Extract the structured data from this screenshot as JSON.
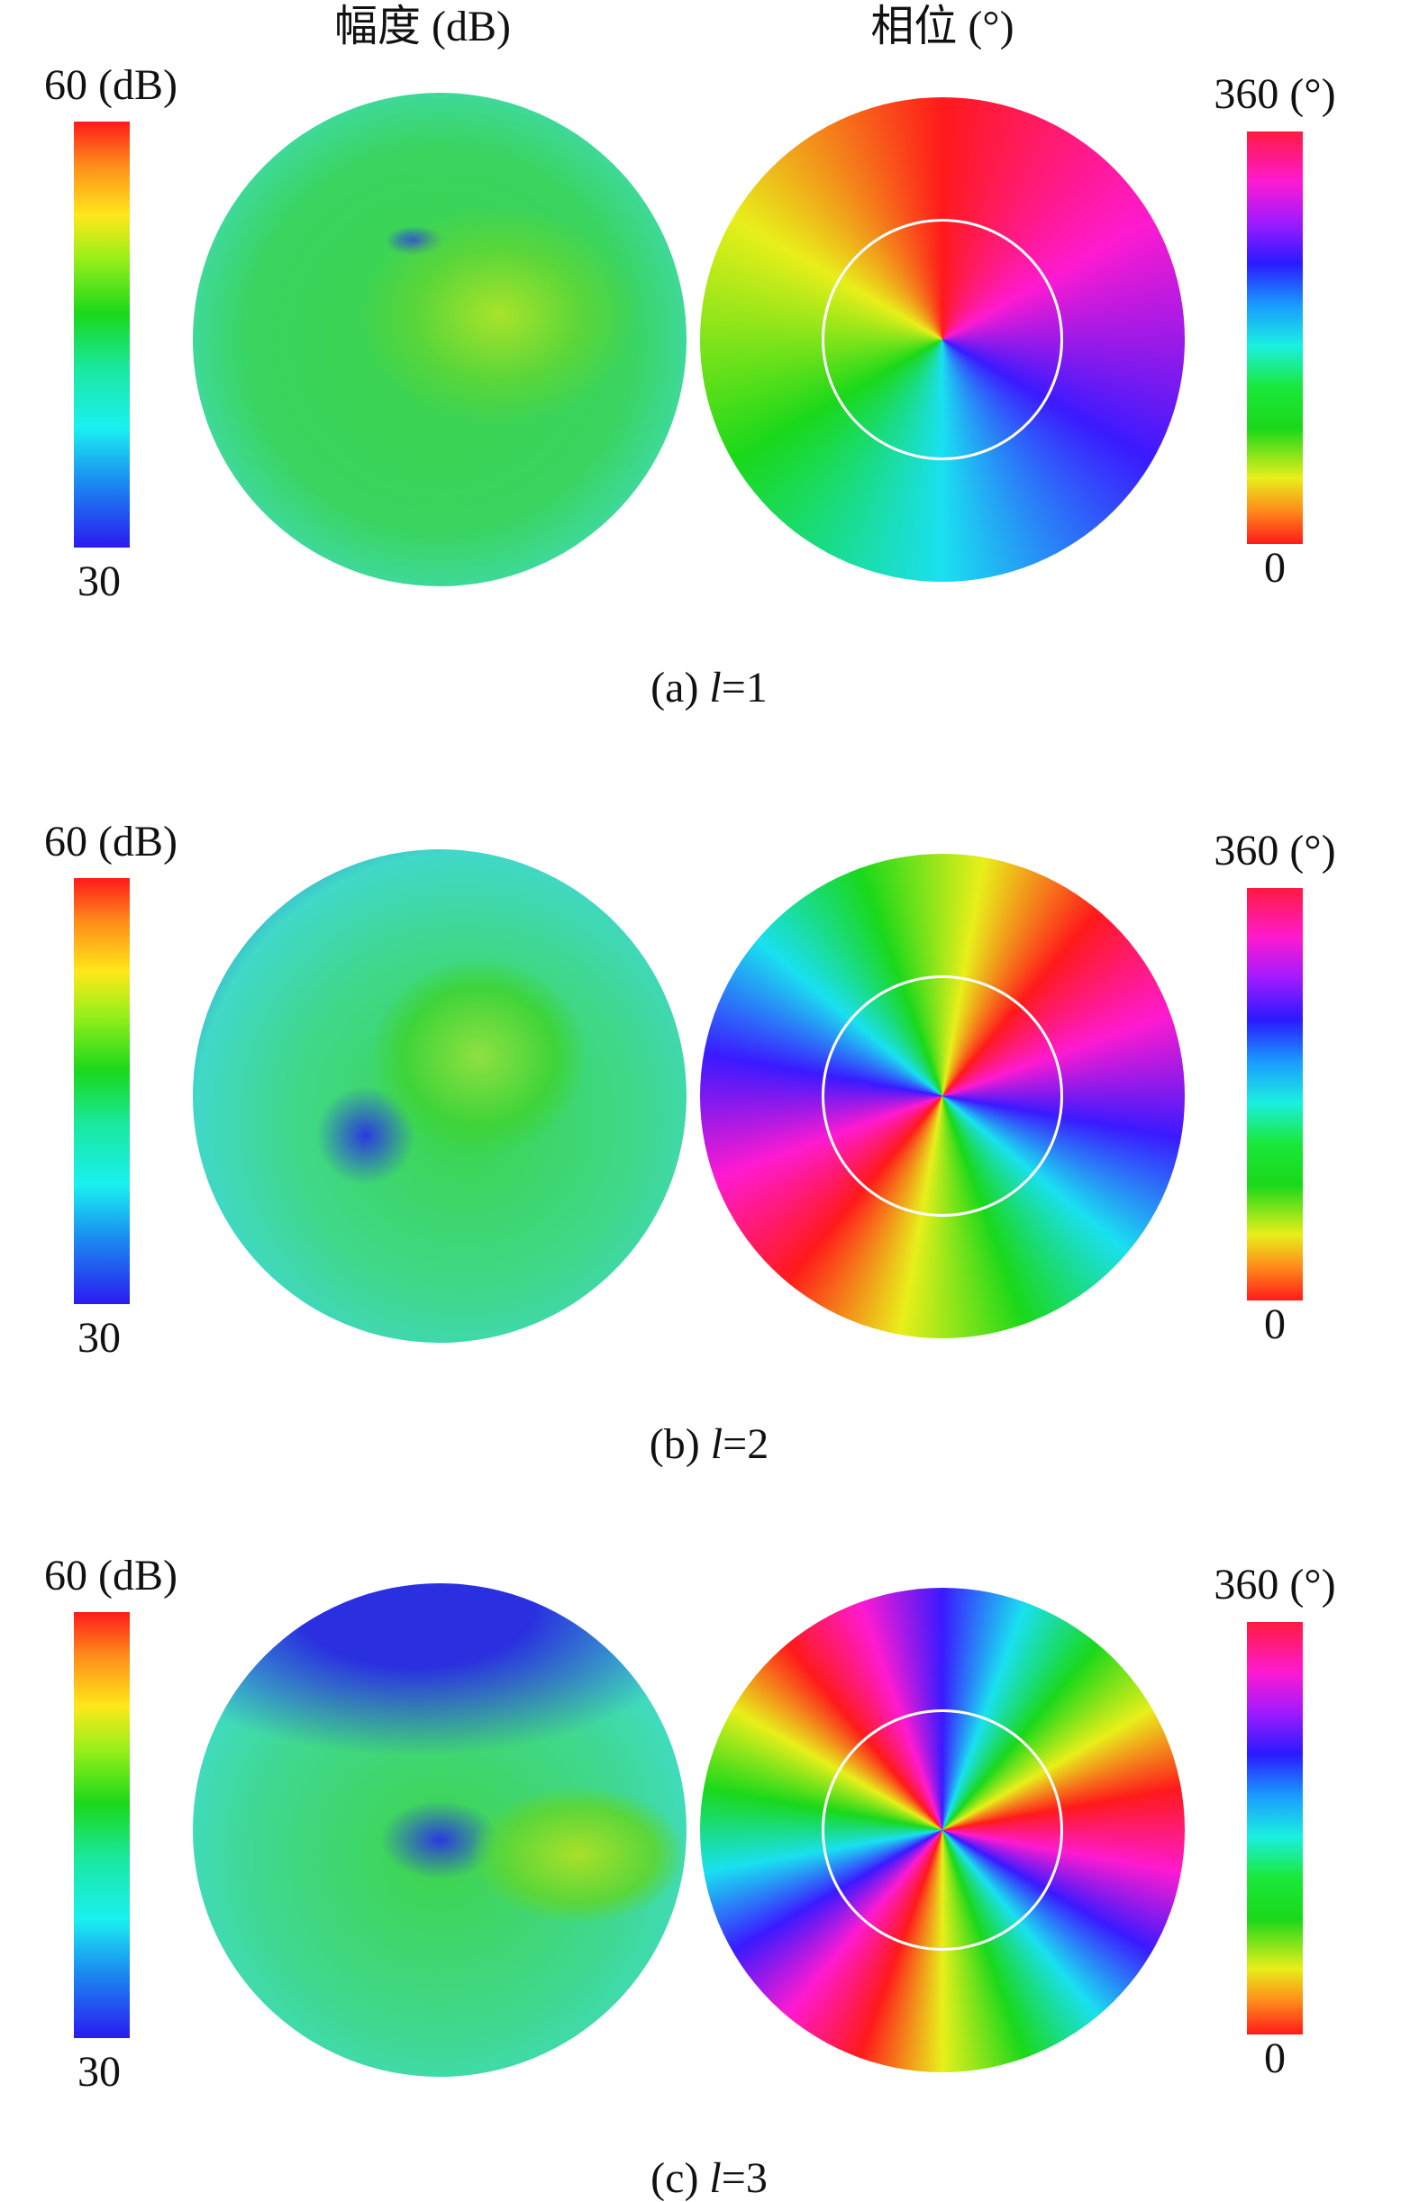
{
  "headers": {
    "amplitude": "幅度 (dB)",
    "phase": "相位 (°)"
  },
  "panels": [
    {
      "amplitude_bar": {
        "top": "60 (dB)",
        "bottom": "30"
      },
      "phase_bar": {
        "top": "360 (°)",
        "bottom": "0"
      },
      "caption": {
        "prefix": "(a)",
        "symbol": "l",
        "sign": "=",
        "order": 1
      }
    },
    {
      "amplitude_bar": {
        "top": "60 (dB)",
        "bottom": "30"
      },
      "phase_bar": {
        "top": "360 (°)",
        "bottom": "0"
      },
      "caption": {
        "prefix": "(b)",
        "symbol": "l",
        "sign": "=",
        "order": 2
      }
    },
    {
      "amplitude_bar": {
        "top": "60 (dB)",
        "bottom": "30"
      },
      "phase_bar": {
        "top": "360 (°)",
        "bottom": "0"
      },
      "caption": {
        "prefix": "(c)",
        "symbol": "l",
        "sign": "=",
        "order": 3
      }
    }
  ]
}
